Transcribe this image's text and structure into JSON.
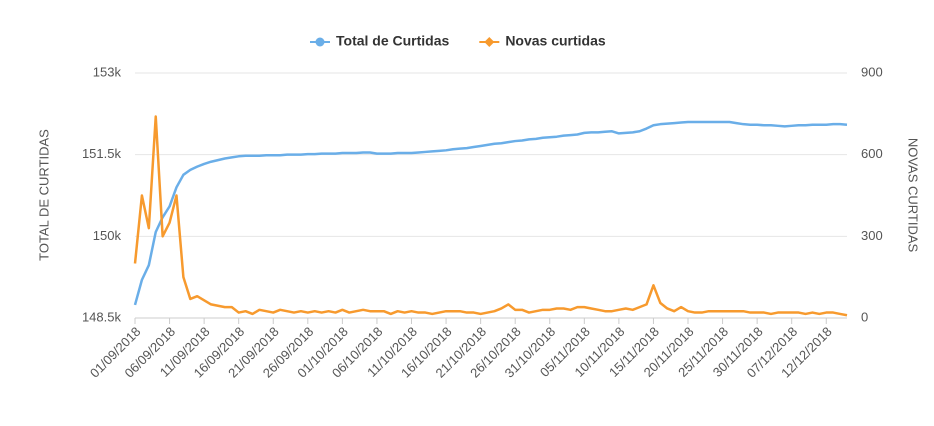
{
  "chart_data": {
    "type": "line",
    "categories": [
      "01/09/2018",
      null,
      null,
      null,
      null,
      "06/09/2018",
      null,
      null,
      null,
      null,
      "11/09/2018",
      null,
      null,
      null,
      null,
      "16/09/2018",
      null,
      null,
      null,
      null,
      "21/09/2018",
      null,
      null,
      null,
      null,
      "26/09/2018",
      null,
      null,
      null,
      null,
      "01/10/2018",
      null,
      null,
      null,
      null,
      "06/10/2018",
      null,
      null,
      null,
      null,
      "11/10/2018",
      null,
      null,
      null,
      null,
      "16/10/2018",
      null,
      null,
      null,
      null,
      "21/10/2018",
      null,
      null,
      null,
      null,
      "26/10/2018",
      null,
      null,
      null,
      null,
      "31/10/2018",
      null,
      null,
      null,
      null,
      "05/11/2018",
      null,
      null,
      null,
      null,
      "10/11/2018",
      null,
      null,
      null,
      null,
      "15/11/2018",
      null,
      null,
      null,
      null,
      "20/11/2018",
      null,
      null,
      null,
      null,
      "25/11/2018",
      null,
      null,
      null,
      null,
      "30/11/2018",
      null,
      null,
      null,
      null,
      "07/12/2018",
      null,
      null,
      null,
      null,
      "12/12/2018",
      null,
      null,
      null
    ],
    "series": [
      {
        "name": "Total de Curtidas",
        "color": "#6aaee8",
        "values": [
          148740,
          149200,
          149470,
          150080,
          150350,
          150550,
          150900,
          151130,
          151220,
          151280,
          151330,
          151370,
          151400,
          151430,
          151450,
          151470,
          151480,
          151480,
          151480,
          151490,
          151490,
          151490,
          151500,
          151500,
          151500,
          151510,
          151510,
          151520,
          151520,
          151520,
          151530,
          151530,
          151530,
          151540,
          151540,
          151520,
          151520,
          151520,
          151530,
          151530,
          151530,
          151540,
          151550,
          151560,
          151570,
          151580,
          151600,
          151610,
          151620,
          151640,
          151660,
          151680,
          151700,
          151710,
          151730,
          151750,
          151760,
          151780,
          151790,
          151810,
          151820,
          151830,
          151850,
          151860,
          151870,
          151900,
          151910,
          151910,
          151920,
          151930,
          151890,
          151900,
          151910,
          151930,
          151980,
          152040,
          152060,
          152070,
          152080,
          152090,
          152100,
          152100,
          152100,
          152100,
          152100,
          152100,
          152100,
          152080,
          152060,
          152050,
          152050,
          152040,
          152040,
          152030,
          152020,
          152030,
          152040,
          152040,
          152050,
          152050,
          152050,
          152060,
          152060,
          152050
        ]
      },
      {
        "name": "Novas curtidas",
        "color": "#f79a2e",
        "axis": "y2",
        "values": [
          200,
          450,
          330,
          740,
          300,
          350,
          450,
          150,
          70,
          80,
          65,
          50,
          45,
          40,
          40,
          20,
          25,
          15,
          30,
          25,
          20,
          30,
          25,
          20,
          25,
          20,
          25,
          20,
          25,
          20,
          30,
          20,
          25,
          30,
          25,
          25,
          25,
          15,
          25,
          20,
          25,
          20,
          20,
          15,
          20,
          25,
          25,
          25,
          20,
          20,
          15,
          20,
          25,
          35,
          50,
          30,
          30,
          20,
          25,
          30,
          30,
          35,
          35,
          30,
          40,
          40,
          35,
          30,
          25,
          25,
          30,
          35,
          30,
          40,
          50,
          120,
          55,
          35,
          25,
          40,
          25,
          20,
          20,
          25,
          25,
          25,
          25,
          25,
          25,
          20,
          20,
          20,
          15,
          20,
          20,
          20,
          20,
          15,
          20,
          15,
          20,
          20,
          15,
          10
        ]
      }
    ],
    "ylabel": "TOTAL DE CURTIDAS",
    "y2label": "NOVAS CURTIDAS",
    "ylim": [
      148500,
      153000
    ],
    "yticks": [
      {
        "value": 148500,
        "label": "148.5k"
      },
      {
        "value": 150000,
        "label": "150k"
      },
      {
        "value": 151500,
        "label": "151.5k"
      },
      {
        "value": 153000,
        "label": "153k"
      }
    ],
    "y2lim": [
      0,
      900
    ],
    "y2ticks": [
      0,
      300,
      600,
      900
    ],
    "grid": true,
    "legend": "top"
  }
}
